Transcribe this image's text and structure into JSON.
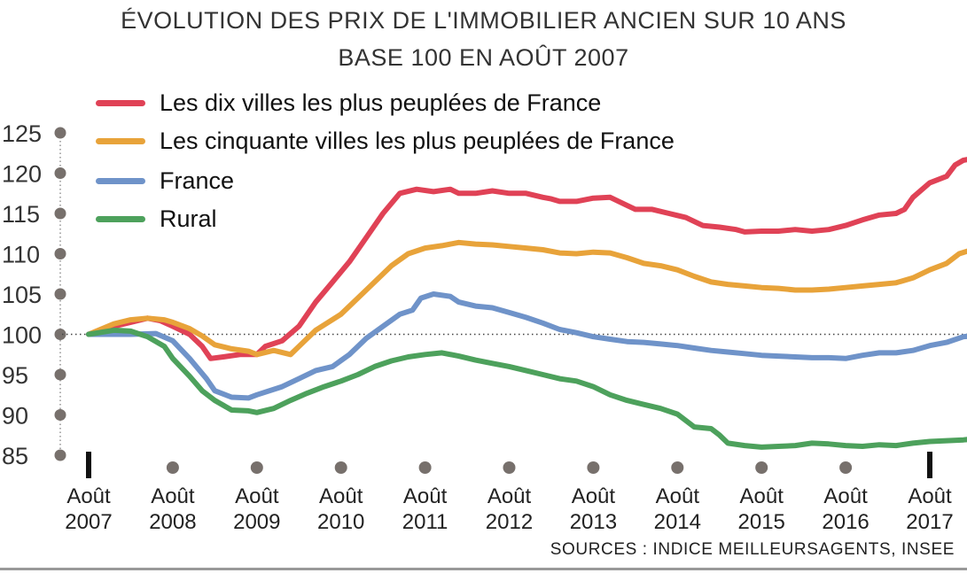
{
  "chart_data": {
    "type": "line",
    "title": "ÉVOLUTION DES PRIX DE L'IMMOBILIER ANCIEN SUR 10 ANS",
    "subtitle": "BASE 100 EN AOÛT 2007",
    "source": "SOURCES : INDICE MEILLEURSAGENTS, INSEE",
    "ylim": [
      85,
      125
    ],
    "y_ticks": [
      125,
      120,
      115,
      110,
      105,
      100,
      95,
      90,
      85
    ],
    "x_ticks": [
      {
        "line1": "Août",
        "line2": "2007"
      },
      {
        "line1": "Août",
        "line2": "2008"
      },
      {
        "line1": "Août",
        "line2": "2009"
      },
      {
        "line1": "Août",
        "line2": "2010"
      },
      {
        "line1": "Août",
        "line2": "2011"
      },
      {
        "line1": "Août",
        "line2": "2012"
      },
      {
        "line1": "Août",
        "line2": "2013"
      },
      {
        "line1": "Août",
        "line2": "2014"
      },
      {
        "line1": "Août",
        "line2": "2015"
      },
      {
        "line1": "Août",
        "line2": "2016"
      },
      {
        "line1": "Août",
        "line2": "2017"
      }
    ],
    "x_unit": "years since Août 2007",
    "reference_line": 100,
    "legend_position": "top-left",
    "series": [
      {
        "name": "Les dix villes les plus peuplées de France",
        "color": "#e04256",
        "points": [
          [
            0,
            100
          ],
          [
            0.3,
            101
          ],
          [
            0.5,
            101.5
          ],
          [
            0.7,
            102
          ],
          [
            0.85,
            101.7
          ],
          [
            1,
            101
          ],
          [
            1.2,
            100
          ],
          [
            1.35,
            98.5
          ],
          [
            1.45,
            97
          ],
          [
            1.6,
            97.2
          ],
          [
            1.8,
            97.5
          ],
          [
            2,
            97.5
          ],
          [
            2.1,
            98.5
          ],
          [
            2.3,
            99.2
          ],
          [
            2.5,
            101
          ],
          [
            2.7,
            104
          ],
          [
            2.9,
            106.5
          ],
          [
            3.1,
            109
          ],
          [
            3.3,
            112
          ],
          [
            3.5,
            115
          ],
          [
            3.7,
            117.5
          ],
          [
            3.9,
            118
          ],
          [
            4.1,
            117.7
          ],
          [
            4.3,
            118
          ],
          [
            4.4,
            117.5
          ],
          [
            4.6,
            117.5
          ],
          [
            4.8,
            117.8
          ],
          [
            5,
            117.5
          ],
          [
            5.2,
            117.5
          ],
          [
            5.4,
            117
          ],
          [
            5.5,
            116.8
          ],
          [
            5.6,
            116.5
          ],
          [
            5.8,
            116.5
          ],
          [
            6,
            116.9
          ],
          [
            6.2,
            117
          ],
          [
            6.4,
            116
          ],
          [
            6.5,
            115.5
          ],
          [
            6.7,
            115.5
          ],
          [
            6.9,
            115
          ],
          [
            7.1,
            114.5
          ],
          [
            7.3,
            113.5
          ],
          [
            7.5,
            113.3
          ],
          [
            7.7,
            113
          ],
          [
            7.8,
            112.7
          ],
          [
            8,
            112.8
          ],
          [
            8.2,
            112.8
          ],
          [
            8.4,
            113
          ],
          [
            8.6,
            112.8
          ],
          [
            8.8,
            113
          ],
          [
            9,
            113.5
          ],
          [
            9.2,
            114.2
          ],
          [
            9.4,
            114.8
          ],
          [
            9.6,
            115
          ],
          [
            9.7,
            115.5
          ],
          [
            9.8,
            117
          ],
          [
            10,
            118.8
          ],
          [
            10.2,
            119.6
          ],
          [
            10.3,
            121
          ],
          [
            10.4,
            121.6
          ],
          [
            10.5,
            121.8
          ]
        ]
      },
      {
        "name": "Les cinquante villes les plus peuplées de France",
        "color": "#e8a33a",
        "points": [
          [
            0,
            100
          ],
          [
            0.3,
            101.3
          ],
          [
            0.5,
            101.8
          ],
          [
            0.7,
            102
          ],
          [
            0.9,
            101.8
          ],
          [
            1,
            101.5
          ],
          [
            1.2,
            100.7
          ],
          [
            1.35,
            99.8
          ],
          [
            1.5,
            98.7
          ],
          [
            1.7,
            98.2
          ],
          [
            1.9,
            97.9
          ],
          [
            2,
            97.5
          ],
          [
            2.2,
            98
          ],
          [
            2.4,
            97.5
          ],
          [
            2.5,
            98.5
          ],
          [
            2.7,
            100.5
          ],
          [
            3,
            102.5
          ],
          [
            3.3,
            105.5
          ],
          [
            3.6,
            108.5
          ],
          [
            3.8,
            110
          ],
          [
            4,
            110.7
          ],
          [
            4.2,
            111
          ],
          [
            4.4,
            111.4
          ],
          [
            4.6,
            111.2
          ],
          [
            4.8,
            111.1
          ],
          [
            5,
            110.9
          ],
          [
            5.2,
            110.7
          ],
          [
            5.4,
            110.5
          ],
          [
            5.6,
            110.1
          ],
          [
            5.8,
            110
          ],
          [
            6,
            110.2
          ],
          [
            6.2,
            110.1
          ],
          [
            6.4,
            109.5
          ],
          [
            6.6,
            108.8
          ],
          [
            6.8,
            108.5
          ],
          [
            7,
            108
          ],
          [
            7.2,
            107.2
          ],
          [
            7.4,
            106.5
          ],
          [
            7.6,
            106.2
          ],
          [
            7.8,
            106
          ],
          [
            8,
            105.8
          ],
          [
            8.2,
            105.7
          ],
          [
            8.4,
            105.5
          ],
          [
            8.6,
            105.5
          ],
          [
            8.8,
            105.6
          ],
          [
            9,
            105.8
          ],
          [
            9.2,
            106
          ],
          [
            9.4,
            106.2
          ],
          [
            9.6,
            106.4
          ],
          [
            9.8,
            107
          ],
          [
            10,
            108
          ],
          [
            10.2,
            108.8
          ],
          [
            10.35,
            110
          ],
          [
            10.5,
            110.5
          ]
        ]
      },
      {
        "name": "France",
        "color": "#6f93c9",
        "points": [
          [
            0,
            100
          ],
          [
            0.3,
            100
          ],
          [
            0.5,
            100
          ],
          [
            0.8,
            100.1
          ],
          [
            1,
            99.2
          ],
          [
            1.2,
            97
          ],
          [
            1.4,
            94.5
          ],
          [
            1.5,
            93
          ],
          [
            1.7,
            92.2
          ],
          [
            1.9,
            92.1
          ],
          [
            2,
            92.5
          ],
          [
            2.3,
            93.5
          ],
          [
            2.5,
            94.5
          ],
          [
            2.7,
            95.5
          ],
          [
            2.9,
            96
          ],
          [
            3.1,
            97.5
          ],
          [
            3.3,
            99.5
          ],
          [
            3.5,
            101
          ],
          [
            3.7,
            102.5
          ],
          [
            3.85,
            103
          ],
          [
            3.95,
            104.5
          ],
          [
            4.1,
            105
          ],
          [
            4.3,
            104.7
          ],
          [
            4.4,
            104
          ],
          [
            4.6,
            103.5
          ],
          [
            4.8,
            103.3
          ],
          [
            5,
            102.7
          ],
          [
            5.2,
            102.1
          ],
          [
            5.4,
            101.4
          ],
          [
            5.6,
            100.6
          ],
          [
            5.8,
            100.2
          ],
          [
            6,
            99.7
          ],
          [
            6.2,
            99.4
          ],
          [
            6.4,
            99.1
          ],
          [
            6.6,
            99
          ],
          [
            6.8,
            98.8
          ],
          [
            7,
            98.6
          ],
          [
            7.2,
            98.3
          ],
          [
            7.4,
            98
          ],
          [
            7.6,
            97.8
          ],
          [
            7.8,
            97.6
          ],
          [
            8,
            97.4
          ],
          [
            8.2,
            97.3
          ],
          [
            8.4,
            97.2
          ],
          [
            8.6,
            97.1
          ],
          [
            8.8,
            97.1
          ],
          [
            9,
            97
          ],
          [
            9.2,
            97.4
          ],
          [
            9.4,
            97.7
          ],
          [
            9.6,
            97.7
          ],
          [
            9.8,
            98
          ],
          [
            10,
            98.6
          ],
          [
            10.2,
            99
          ],
          [
            10.4,
            99.7
          ],
          [
            10.5,
            99.8
          ]
        ]
      },
      {
        "name": "Rural",
        "color": "#4da15c",
        "points": [
          [
            0,
            100
          ],
          [
            0.3,
            100.5
          ],
          [
            0.5,
            100.4
          ],
          [
            0.7,
            99.7
          ],
          [
            0.9,
            98.5
          ],
          [
            1,
            97
          ],
          [
            1.2,
            94.8
          ],
          [
            1.35,
            93
          ],
          [
            1.5,
            91.8
          ],
          [
            1.7,
            90.6
          ],
          [
            1.9,
            90.5
          ],
          [
            2,
            90.3
          ],
          [
            2.2,
            90.8
          ],
          [
            2.4,
            91.8
          ],
          [
            2.6,
            92.7
          ],
          [
            2.8,
            93.5
          ],
          [
            3,
            94.2
          ],
          [
            3.2,
            95
          ],
          [
            3.4,
            96
          ],
          [
            3.6,
            96.7
          ],
          [
            3.8,
            97.2
          ],
          [
            4,
            97.5
          ],
          [
            4.2,
            97.7
          ],
          [
            4.4,
            97.3
          ],
          [
            4.6,
            96.8
          ],
          [
            4.8,
            96.4
          ],
          [
            5,
            96
          ],
          [
            5.2,
            95.5
          ],
          [
            5.4,
            95
          ],
          [
            5.6,
            94.5
          ],
          [
            5.8,
            94.2
          ],
          [
            6,
            93.5
          ],
          [
            6.2,
            92.5
          ],
          [
            6.4,
            91.8
          ],
          [
            6.6,
            91.3
          ],
          [
            6.8,
            90.8
          ],
          [
            7,
            90.1
          ],
          [
            7.2,
            88.5
          ],
          [
            7.4,
            88.3
          ],
          [
            7.5,
            87.5
          ],
          [
            7.6,
            86.5
          ],
          [
            7.8,
            86.2
          ],
          [
            8,
            86
          ],
          [
            8.2,
            86.1
          ],
          [
            8.4,
            86.2
          ],
          [
            8.6,
            86.5
          ],
          [
            8.8,
            86.4
          ],
          [
            9,
            86.2
          ],
          [
            9.2,
            86.1
          ],
          [
            9.4,
            86.3
          ],
          [
            9.6,
            86.2
          ],
          [
            9.8,
            86.5
          ],
          [
            10,
            86.7
          ],
          [
            10.2,
            86.8
          ],
          [
            10.4,
            86.9
          ],
          [
            10.5,
            87
          ]
        ]
      }
    ]
  }
}
